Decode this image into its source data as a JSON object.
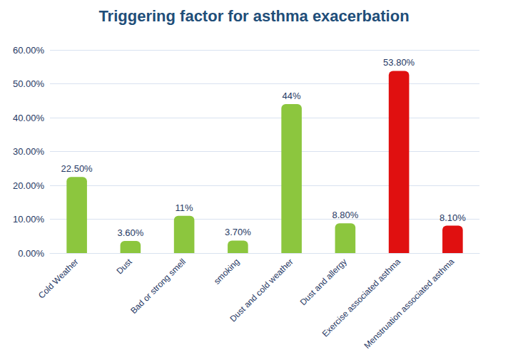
{
  "chart_data": {
    "type": "bar",
    "title": "Triggering factor for asthma exacerbation",
    "categories": [
      "Cold Weather",
      "Dust",
      "Bad or strong smell",
      "smoking",
      "Dust and cold weather",
      "Dust and allergy",
      "Exercise associated asthma",
      "Menstruation associated asthma"
    ],
    "values": [
      22.5,
      3.6,
      11,
      3.7,
      44,
      8.8,
      53.8,
      8.1
    ],
    "value_labels": [
      "22.50%",
      "3.60%",
      "11%",
      "3.70%",
      "44%",
      "8.80%",
      "53.80%",
      "8.10%"
    ],
    "colors": [
      "#8cc63e",
      "#8cc63e",
      "#8cc63e",
      "#8cc63e",
      "#8cc63e",
      "#8cc63e",
      "#e01010",
      "#e01010"
    ],
    "ylim": [
      0,
      60
    ],
    "yticks": [
      {
        "value": 0,
        "label": "0.00%"
      },
      {
        "value": 10,
        "label": "10.00%"
      },
      {
        "value": 20,
        "label": "20.00%"
      },
      {
        "value": 30,
        "label": "30.00%"
      },
      {
        "value": 40,
        "label": "40.00%"
      },
      {
        "value": 50,
        "label": "50.00%"
      },
      {
        "value": 60,
        "label": "60.00%"
      }
    ],
    "grid": true,
    "data_labels": true
  }
}
